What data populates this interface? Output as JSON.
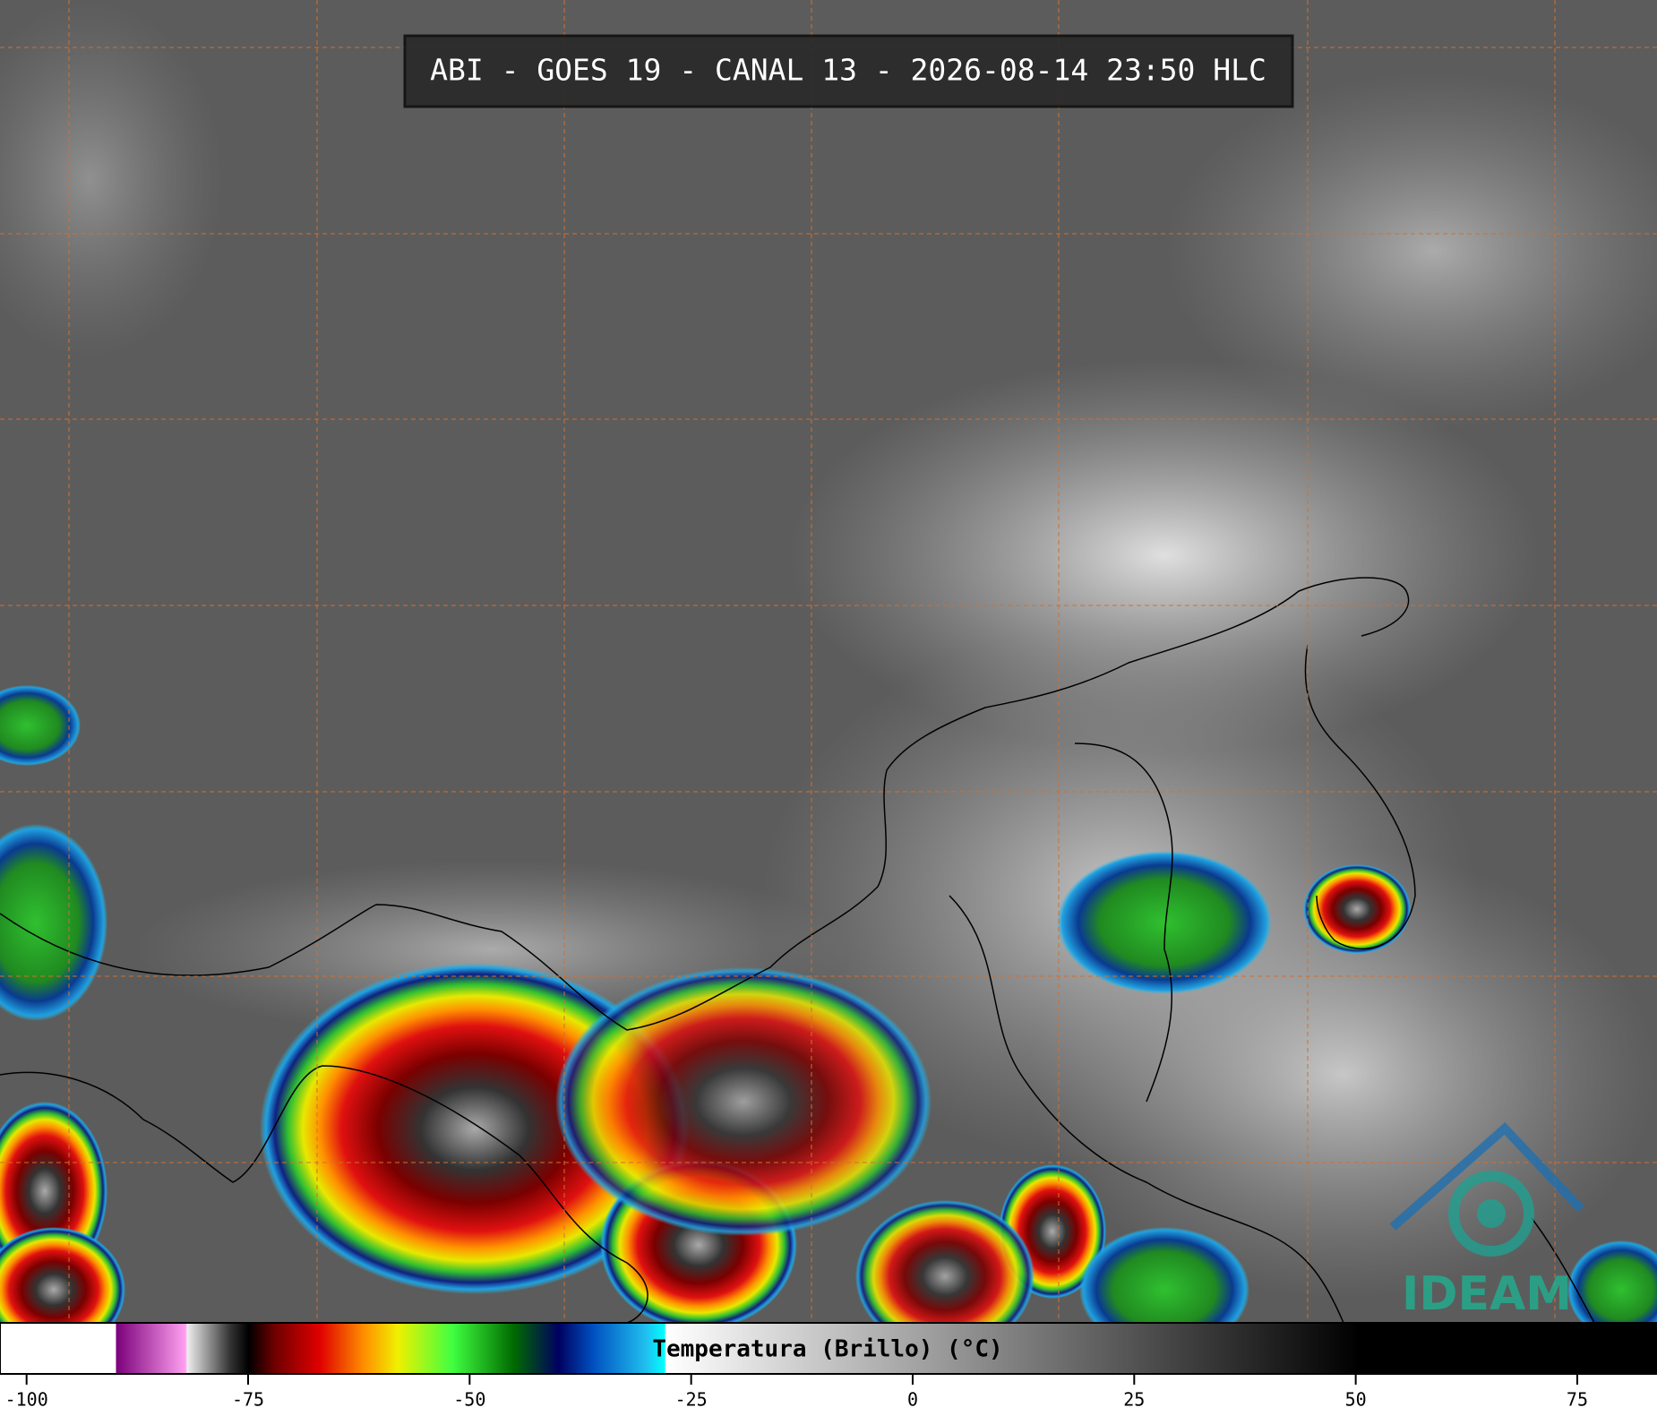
{
  "title": "ABI - GOES 19 - CANAL 13 - 2026-08-14 23:50 HLC",
  "logo": "IDEAM",
  "colorbar": {
    "label": "Temperatura (Brillo) (°C)",
    "xlim": [
      -103,
      84
    ],
    "ticks": [
      -100,
      -75,
      -50,
      -25,
      0,
      25,
      50,
      75
    ]
  }
}
